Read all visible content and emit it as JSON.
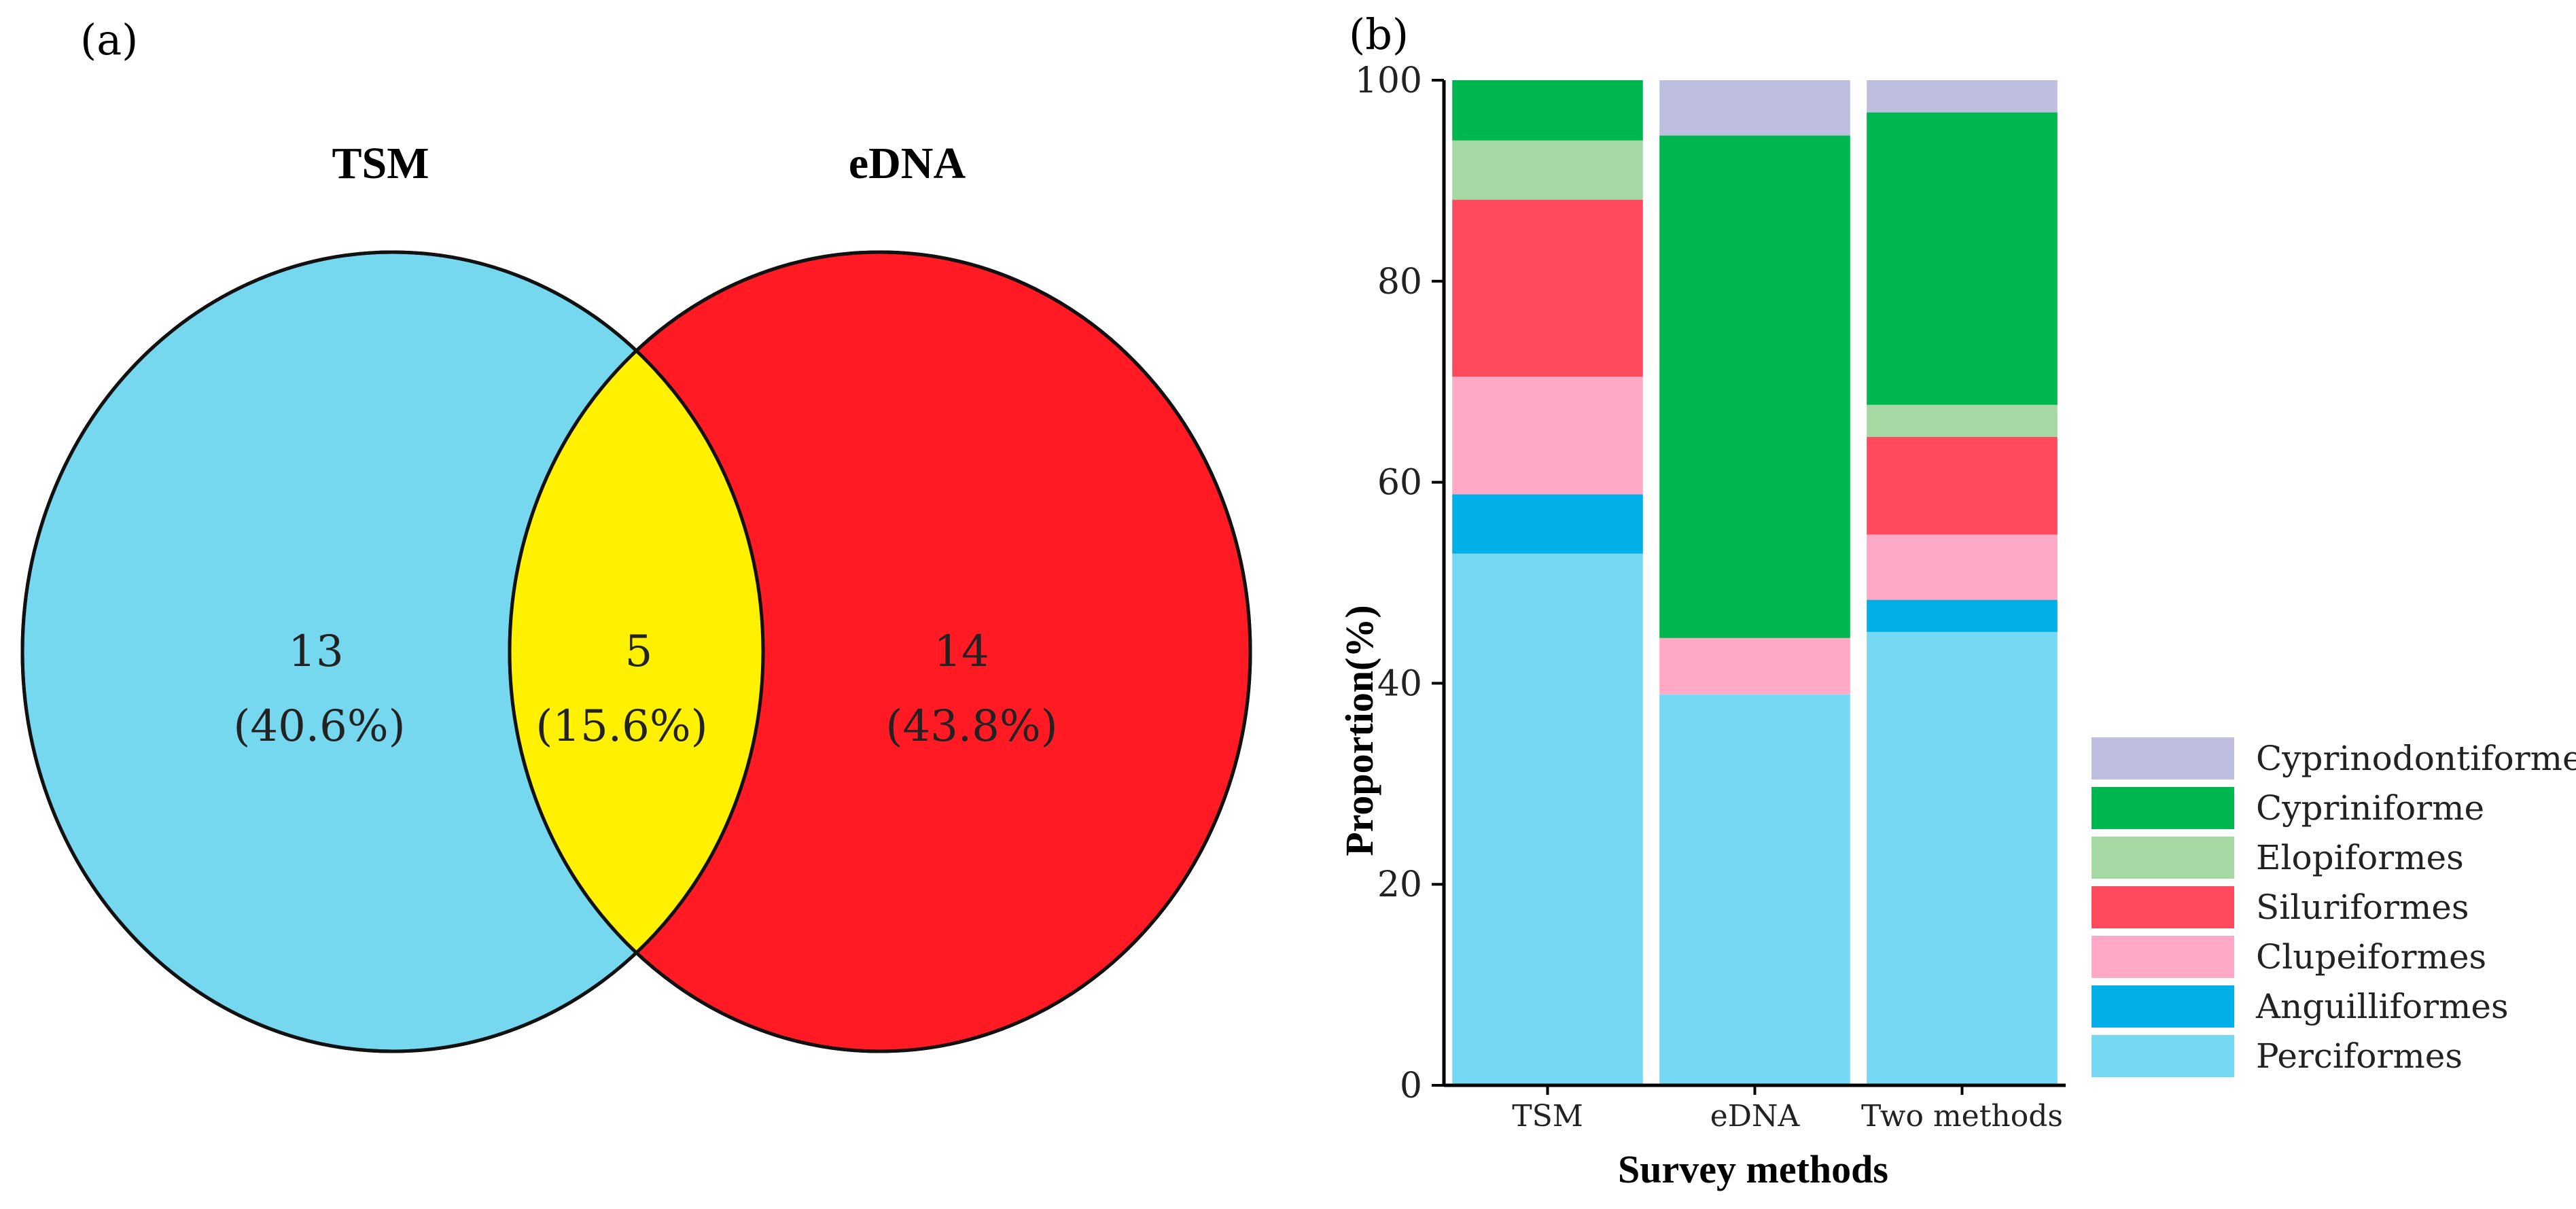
{
  "panels": {
    "a_label": "(a)",
    "b_label": "(b)"
  },
  "venn": {
    "left": {
      "title": "TSM",
      "count": "13",
      "percent": "(40.6%)",
      "color": "#76d8ee"
    },
    "intersection": {
      "count": "5",
      "percent": "(15.6%)",
      "color": "#fff100"
    },
    "right": {
      "title": "eDNA",
      "count": "14",
      "percent": "(43.8%)",
      "color": "#ff1a24"
    }
  },
  "chart_data": {
    "type": "bar",
    "stacked": true,
    "categories": [
      "TSM",
      "eDNA",
      "Two methods"
    ],
    "xlabel": "Survey methods",
    "ylabel": "Proportion(%)",
    "ylim": [
      0,
      100
    ],
    "yticks": [
      0,
      20,
      40,
      60,
      80,
      100
    ],
    "legend_position": "bottom-right",
    "series": [
      {
        "name": "Perciformes",
        "color": "#76d8f2",
        "values": [
          52.9,
          38.9,
          45.1
        ]
      },
      {
        "name": "Anguilliformes",
        "color": "#00aee8",
        "values": [
          5.9,
          0,
          3.2
        ]
      },
      {
        "name": "Clupeiformes",
        "color": "#ffa9c6",
        "values": [
          11.7,
          5.6,
          6.5
        ]
      },
      {
        "name": "Siluriformes",
        "color": "#ff4a5e",
        "values": [
          17.6,
          0,
          9.7
        ]
      },
      {
        "name": "Elopiformes",
        "color": "#a5d8a3",
        "values": [
          5.9,
          0,
          3.2
        ]
      },
      {
        "name": "Cypriniforme",
        "color": "#00b64f",
        "values": [
          6.0,
          50.0,
          29.1
        ]
      },
      {
        "name": "Cyprinodontiformes",
        "color": "#bebfe0",
        "values": [
          0,
          5.5,
          3.2
        ]
      }
    ]
  }
}
